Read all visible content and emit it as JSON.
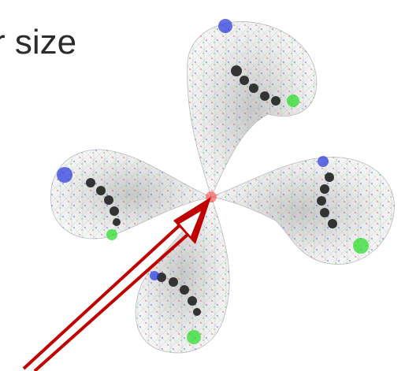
{
  "caption": {
    "text": "r size"
  }
}
